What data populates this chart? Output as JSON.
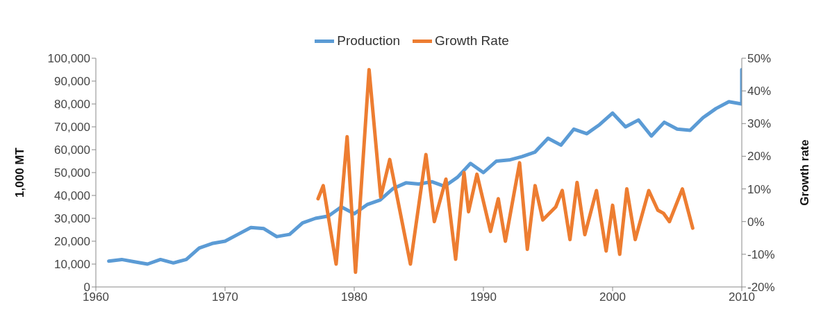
{
  "chart_data": {
    "type": "line",
    "ylabel": "1,000 MT",
    "y2label": "Growth rate",
    "legend": "top",
    "grid": false,
    "marker": "none",
    "line_style": "solid",
    "xlim": [
      1960,
      2010
    ],
    "xticks": [
      1960,
      1970,
      1980,
      1990,
      2000,
      2010
    ],
    "ylim": [
      0,
      100000
    ],
    "yticks": [
      {
        "value": 0,
        "label": "0"
      },
      {
        "value": 10000,
        "label": "10,000"
      },
      {
        "value": 20000,
        "label": "20,000"
      },
      {
        "value": 30000,
        "label": "30,000"
      },
      {
        "value": 40000,
        "label": "40,000"
      },
      {
        "value": 50000,
        "label": "50,000"
      },
      {
        "value": 60000,
        "label": "60,000"
      },
      {
        "value": 70000,
        "label": "70,000"
      },
      {
        "value": 80000,
        "label": "80,000"
      },
      {
        "value": 90000,
        "label": "90,000"
      },
      {
        "value": 100000,
        "label": "100,000"
      }
    ],
    "y2lim": [
      -20,
      50
    ],
    "y2ticks": [
      {
        "value": -20,
        "label": "-20%"
      },
      {
        "value": -10,
        "label": "-10%"
      },
      {
        "value": 0,
        "label": "0%"
      },
      {
        "value": 10,
        "label": "10%"
      },
      {
        "value": 20,
        "label": "20%"
      },
      {
        "value": 30,
        "label": "30%"
      },
      {
        "value": 40,
        "label": "40%"
      },
      {
        "value": 50,
        "label": "50%"
      }
    ],
    "series": [
      {
        "name": "Production",
        "color": "#5b9bd5",
        "x": [
          1961,
          1962,
          1963,
          1964,
          1965,
          1966,
          1967,
          1968,
          1969,
          1970,
          1971,
          1972,
          1973,
          1974,
          1975,
          1976,
          1977,
          1978,
          1979,
          1980,
          1981,
          1982,
          1983,
          1984,
          1985,
          1986,
          1987,
          1988,
          1989,
          1990,
          1991,
          1992,
          1993,
          1994,
          1995,
          1996,
          1997,
          1998,
          1999,
          2000,
          2001,
          2002,
          2003,
          2004,
          2005,
          2006,
          2007,
          2008,
          2009,
          2010,
          2010
        ],
        "values": [
          11300,
          12000,
          11000,
          10000,
          12000,
          10500,
          12000,
          17000,
          19000,
          20000,
          23000,
          26000,
          25500,
          22000,
          23000,
          28000,
          30000,
          31000,
          35000,
          32000,
          36000,
          38000,
          43000,
          45500,
          45000,
          46000,
          44000,
          48000,
          54000,
          50000,
          55000,
          55500,
          57000,
          59000,
          65000,
          62000,
          69000,
          67000,
          71000,
          76000,
          70000,
          73000,
          66000,
          72000,
          69000,
          68500,
          74000,
          78000,
          81000,
          80000,
          95000
        ]
      },
      {
        "name": "Growth Rate",
        "color": "#ed7d31",
        "axis": "y2",
        "x": [
          1977.2,
          1977.6,
          1978.6,
          1979.45,
          1980.1,
          1981.15,
          1982.05,
          1982.75,
          1984.35,
          1985.55,
          1986.2,
          1987.1,
          1987.85,
          1988.5,
          1988.85,
          1989.5,
          1990.55,
          1991.15,
          1991.7,
          1992.8,
          1993.4,
          1994.0,
          1994.6,
          1995.6,
          1996.1,
          1996.7,
          1997.25,
          1997.85,
          1998.75,
          1999.5,
          2000.0,
          2000.55,
          2001.1,
          2001.75,
          2002.8,
          2003.5,
          2003.95,
          2004.4,
          2005.4,
          2006.2
        ],
        "values": [
          7,
          11,
          -13,
          26,
          -15.5,
          46.5,
          7.5,
          19,
          -13,
          20.5,
          0,
          13,
          -11.5,
          15,
          3,
          14.5,
          -3,
          7,
          -6,
          18,
          -8.5,
          11,
          0.5,
          4.5,
          9.5,
          -5.5,
          12,
          -4,
          9.5,
          -9,
          5,
          -10,
          10,
          -5.5,
          9.5,
          3.5,
          2.5,
          0,
          10,
          -2
        ]
      }
    ]
  }
}
